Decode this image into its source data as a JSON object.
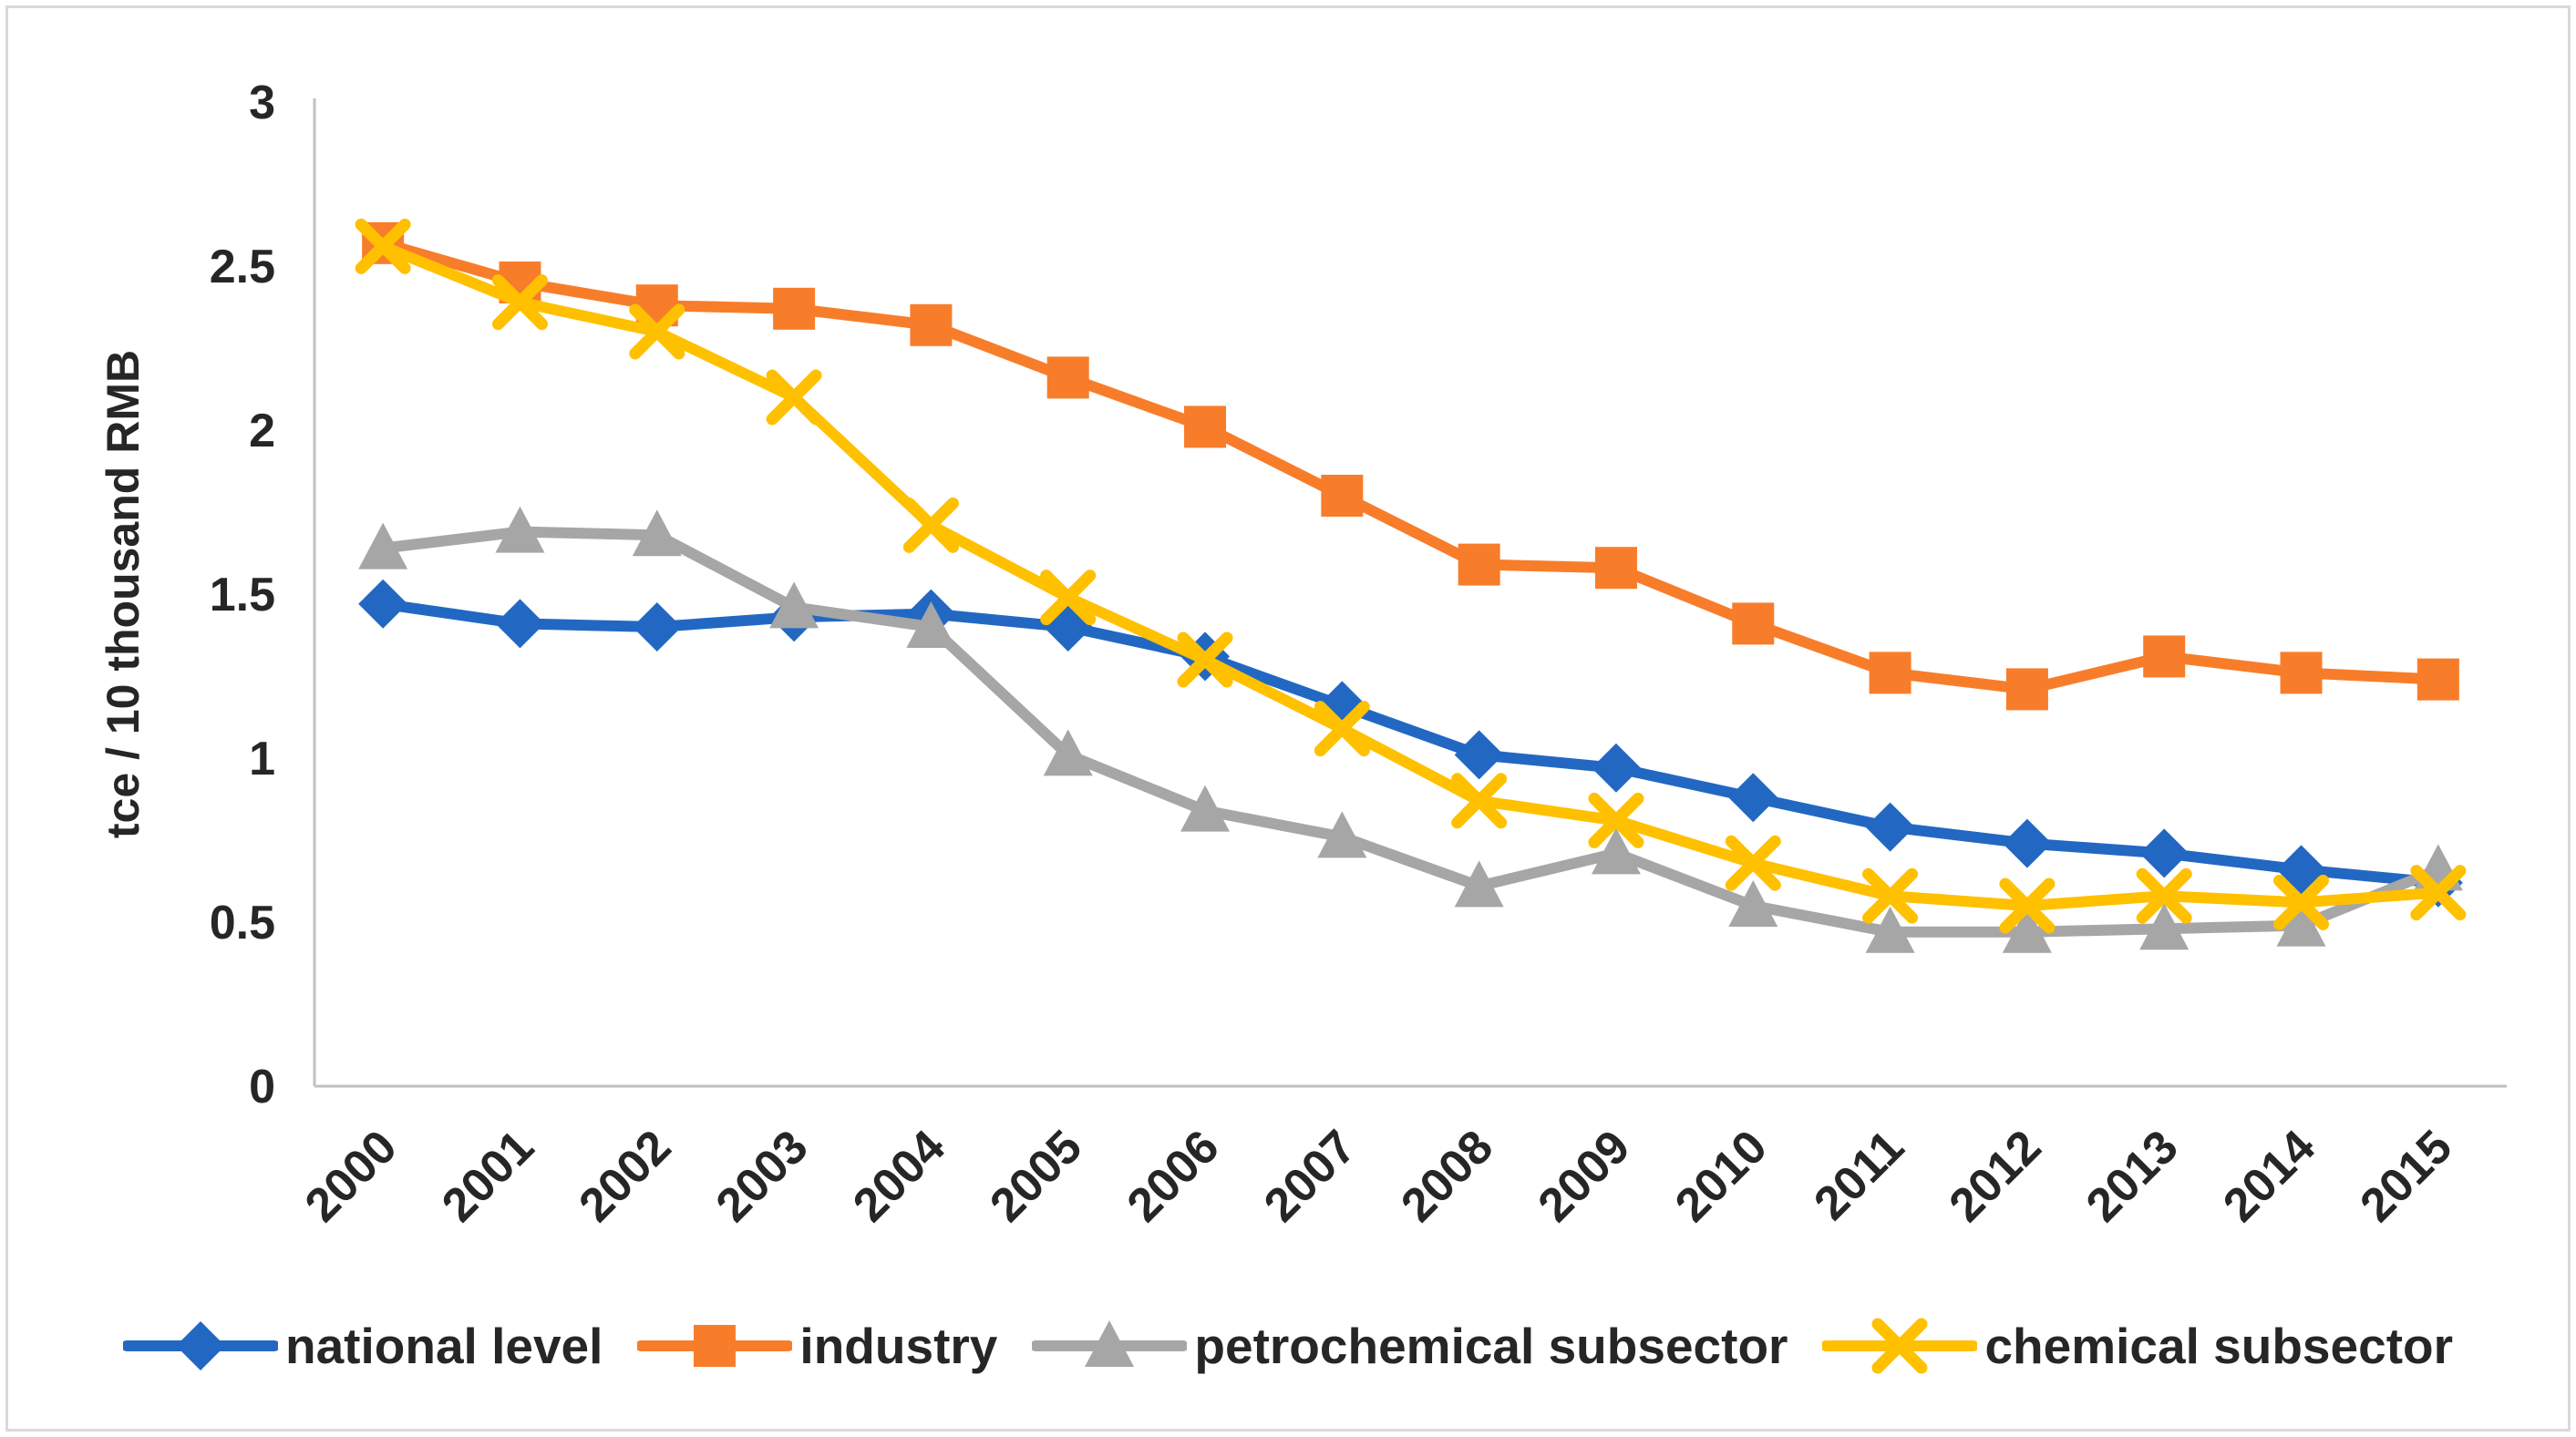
{
  "figure": {
    "background_color": "#FFFFFF",
    "border_color": "#D9D9D9",
    "axis_line_color": "#C0C0C0",
    "text_color": "#262626"
  },
  "y_axis": {
    "title": "tce / 10 thousand RMB",
    "tick_labels": [
      "3",
      "2.5",
      "2",
      "1.5",
      "1",
      "0.5",
      "0"
    ],
    "max": 3,
    "min": 0,
    "tick_step": 0.5
  },
  "x_axis": {
    "categories": [
      "2000",
      "2001",
      "2002",
      "2003",
      "2004",
      "2005",
      "2006",
      "2007",
      "2008",
      "2009",
      "2010",
      "2011",
      "2012",
      "2013",
      "2014",
      "2015"
    ]
  },
  "chart_data": {
    "type": "line",
    "title": "",
    "xlabel": "",
    "ylabel": "tce / 10 thousand RMB",
    "ylim": [
      0,
      3
    ],
    "ytick_step": 0.5,
    "grid": false,
    "legend_position": "bottom",
    "categories": [
      "2000",
      "2001",
      "2002",
      "2003",
      "2004",
      "2005",
      "2006",
      "2007",
      "2008",
      "2009",
      "2010",
      "2011",
      "2012",
      "2013",
      "2014",
      "2015"
    ],
    "series": [
      {
        "name": "national level",
        "color": "#2268C3",
        "marker": "diamond",
        "values": [
          1.47,
          1.41,
          1.4,
          1.43,
          1.44,
          1.4,
          1.31,
          1.16,
          1.01,
          0.97,
          0.88,
          0.79,
          0.74,
          0.71,
          0.66,
          0.62
        ]
      },
      {
        "name": "industry",
        "color": "#F87D2A",
        "marker": "square",
        "values": [
          2.57,
          2.45,
          2.38,
          2.37,
          2.32,
          2.16,
          2.01,
          1.8,
          1.59,
          1.58,
          1.41,
          1.26,
          1.21,
          1.31,
          1.26,
          1.24
        ]
      },
      {
        "name": "petrochemical subsector",
        "color": "#A6A6A6",
        "marker": "triangle",
        "values": [
          1.64,
          1.69,
          1.68,
          1.46,
          1.4,
          1.01,
          0.84,
          0.76,
          0.61,
          0.71,
          0.55,
          0.47,
          0.47,
          0.48,
          0.49,
          0.66
        ]
      },
      {
        "name": "chemical subsector",
        "color": "#FFC000",
        "marker": "x",
        "values": [
          2.56,
          2.39,
          2.3,
          2.1,
          1.71,
          1.49,
          1.3,
          1.09,
          0.87,
          0.81,
          0.68,
          0.58,
          0.55,
          0.58,
          0.56,
          0.59
        ]
      }
    ]
  }
}
